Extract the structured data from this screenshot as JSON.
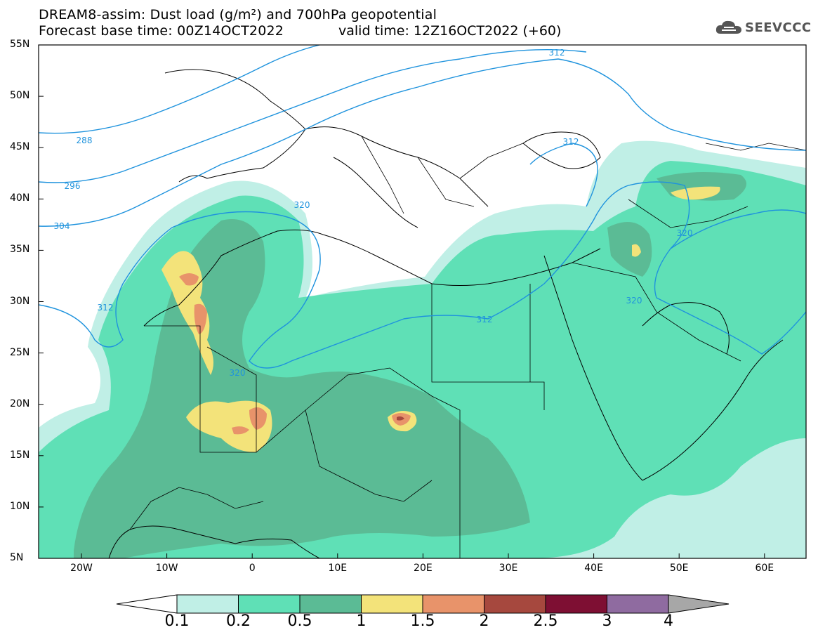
{
  "title": {
    "line1": "DREAM8-assim: Dust load (g/m²) and 700hPa geopotential",
    "line2_base": "Forecast base time: 00Z14OCT2022",
    "line2_valid": "valid time: 12Z16OCT2022 (+60)"
  },
  "logo": {
    "text": "SEEVCCC",
    "icon": "cloud-icon"
  },
  "axes": {
    "lat_labels": [
      "55N",
      "50N",
      "45N",
      "40N",
      "35N",
      "30N",
      "25N",
      "20N",
      "15N",
      "10N",
      "5N"
    ],
    "lon_labels": [
      "20W",
      "10W",
      "0",
      "10E",
      "20E",
      "30E",
      "40E",
      "50E",
      "60E"
    ]
  },
  "contour_labels": [
    "288",
    "296",
    "304",
    "312",
    "320",
    "312",
    "312",
    "320",
    "320",
    "320",
    "312"
  ],
  "colorbar": {
    "ticks": [
      "0.1",
      "0.2",
      "0.5",
      "1",
      "1.5",
      "2",
      "2.5",
      "3",
      "4"
    ],
    "colors": [
      "#c0efe6",
      "#5fe0b6",
      "#5bbb95",
      "#f3e37a",
      "#e8936a",
      "#a6483e",
      "#7e0f33",
      "#8f6ba0",
      "#a7a7a7"
    ]
  },
  "map_colors": {
    "ocean": "#ffffff",
    "low": "#c0efe6",
    "mid": "#5fe0b6",
    "high": "#5bbb95",
    "yellow": "#f3e37a",
    "orange": "#e8936a",
    "red": "#a6483e",
    "contour": "#1f93dd"
  }
}
